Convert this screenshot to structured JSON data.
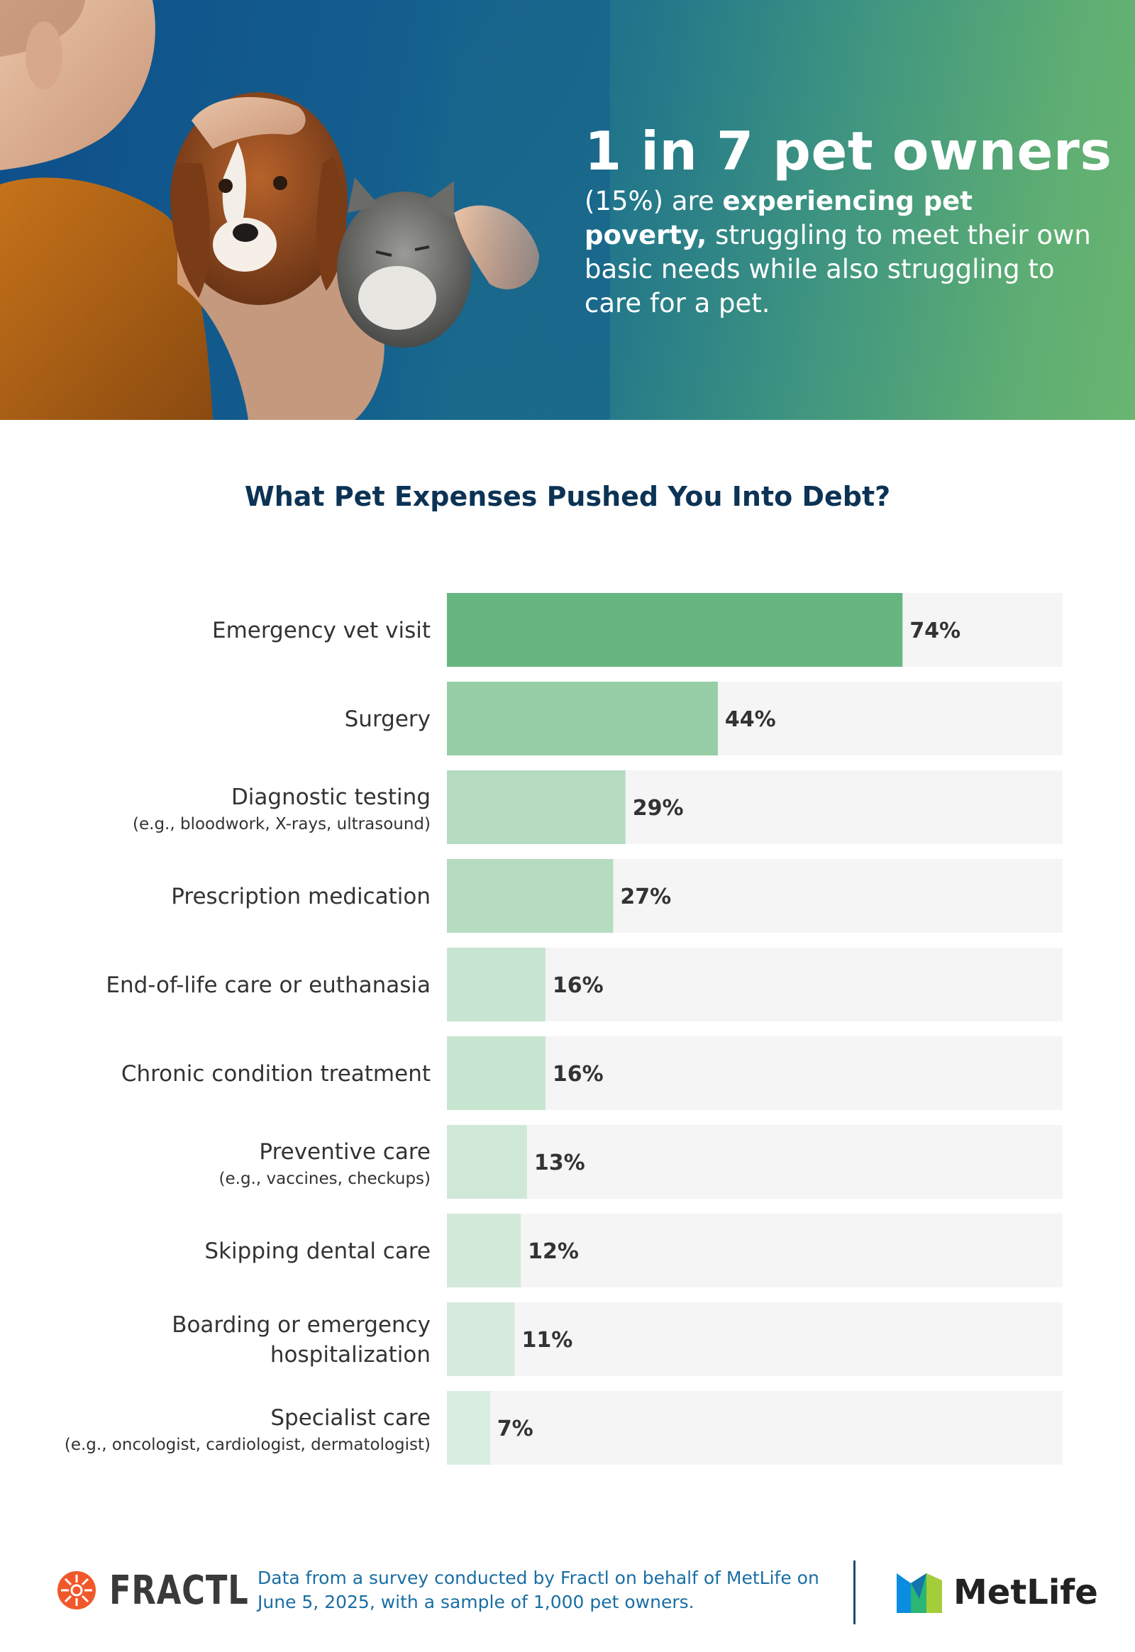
{
  "hero": {
    "headline": "1 in 7 pet owners",
    "body_prefix": "(15%) are ",
    "body_bold": "experiencing pet poverty,",
    "body_rest": "struggling to meet their own basic needs while also struggling to care for a pet."
  },
  "chart_data": {
    "type": "bar",
    "orientation": "horizontal",
    "title": "What Pet Expenses Pushed You Into Debt?",
    "xlabel": "",
    "ylabel": "",
    "xlim": [
      0,
      100
    ],
    "grid": false,
    "categories": [
      {
        "label": "Emergency vet visit",
        "sub": ""
      },
      {
        "label": "Surgery",
        "sub": ""
      },
      {
        "label": "Diagnostic testing",
        "sub": "(e.g., bloodwork, X-rays, ultrasound)"
      },
      {
        "label": "Prescription medication",
        "sub": ""
      },
      {
        "label": "End-of-life care or euthanasia",
        "sub": ""
      },
      {
        "label": "Chronic condition treatment",
        "sub": ""
      },
      {
        "label": "Preventive care",
        "sub": "(e.g., vaccines, checkups)"
      },
      {
        "label": "Skipping dental care",
        "sub": ""
      },
      {
        "label": "Boarding or emergency|hospitalization",
        "sub": ""
      },
      {
        "label": "Specialist care",
        "sub": "(e.g., oncologist, cardiologist, dermatologist)"
      }
    ],
    "values": [
      74,
      44,
      29,
      27,
      16,
      16,
      13,
      12,
      11,
      7
    ],
    "value_labels": [
      "74%",
      "44%",
      "29%",
      "27%",
      "16%",
      "16%",
      "13%",
      "12%",
      "11%",
      "7%"
    ],
    "colors": [
      "#67b680",
      "#97cea6",
      "#b5dcc1",
      "#b5dcc1",
      "#c7e5d0",
      "#c7e5d0",
      "#cfe8d7",
      "#d3e9da",
      "#d6ebdd",
      "#d9ede0"
    ],
    "track_color": "#f5f5f5"
  },
  "footer": {
    "fractl_logo": "FRACTL",
    "note": "Data from a survey conducted by Fractl on behalf of MetLife on June 5, 2025, with a sample of 1,000 pet owners.",
    "metlife_logo": "MetLife"
  }
}
